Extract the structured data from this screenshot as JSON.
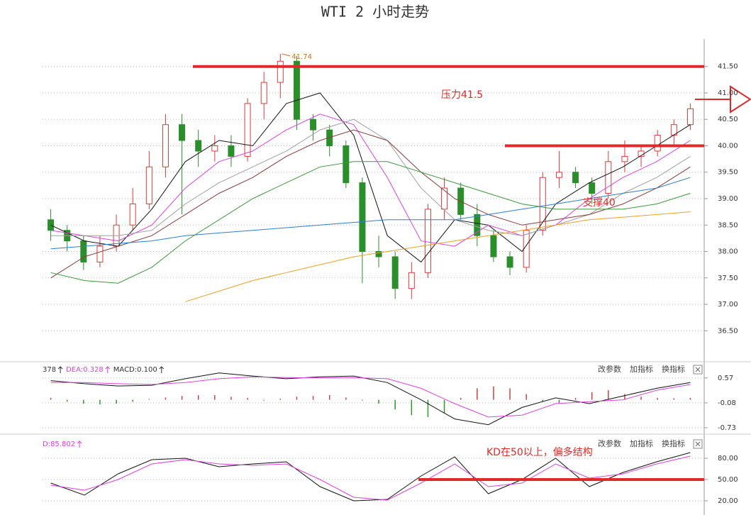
{
  "chart_data": [
    {
      "type": "candlestick",
      "title": "WTI 2 小时走势",
      "ylim": [
        35.98,
        42.02
      ],
      "yticks": [
        {
          "value": 36.5,
          "label": "36.50"
        },
        {
          "value": 37,
          "label": "37.00"
        },
        {
          "value": 37.5,
          "label": "37.50"
        },
        {
          "value": 38,
          "label": "38.00"
        },
        {
          "value": 38.5,
          "label": "38.50"
        },
        {
          "value": 39,
          "label": "39.00"
        },
        {
          "value": 39.5,
          "label": "39.50"
        },
        {
          "value": 40,
          "label": "40.00"
        },
        {
          "value": 40.5,
          "label": "40.50"
        },
        {
          "value": 41,
          "label": "41.00"
        },
        {
          "value": 41.5,
          "label": "41.50"
        }
      ],
      "grid": true,
      "up_color": "#e03a3a",
      "down_color": "#2a8f2a",
      "ohlc": [
        [
          38.6,
          38.8,
          38.2,
          38.4
        ],
        [
          38.4,
          38.5,
          38.0,
          38.2
        ],
        [
          38.2,
          38.3,
          37.65,
          37.8
        ],
        [
          37.8,
          38.3,
          37.7,
          38.1
        ],
        [
          38.1,
          38.7,
          38.0,
          38.5
        ],
        [
          38.5,
          39.2,
          38.4,
          38.9
        ],
        [
          38.9,
          39.9,
          38.8,
          39.6
        ],
        [
          39.6,
          40.6,
          39.4,
          40.4
        ],
        [
          40.4,
          40.6,
          38.7,
          40.1
        ],
        [
          40.1,
          40.3,
          39.6,
          39.9
        ],
        [
          39.9,
          40.2,
          39.7,
          40.0
        ],
        [
          40.0,
          40.2,
          39.6,
          39.8
        ],
        [
          39.8,
          40.9,
          39.7,
          40.8
        ],
        [
          40.8,
          41.4,
          40.5,
          41.2
        ],
        [
          41.2,
          41.74,
          40.9,
          41.6
        ],
        [
          41.6,
          41.7,
          40.3,
          40.5
        ],
        [
          40.5,
          40.6,
          40.1,
          40.3
        ],
        [
          40.3,
          40.4,
          39.8,
          40.0
        ],
        [
          40.0,
          40.1,
          39.2,
          39.3
        ],
        [
          39.3,
          39.4,
          37.4,
          38.0
        ],
        [
          38.0,
          38.3,
          37.7,
          37.9
        ],
        [
          37.9,
          38.0,
          37.1,
          37.3
        ],
        [
          37.3,
          37.8,
          37.1,
          37.6
        ],
        [
          37.6,
          38.9,
          37.5,
          38.8
        ],
        [
          38.8,
          39.4,
          38.6,
          39.2
        ],
        [
          39.2,
          39.3,
          38.6,
          38.7
        ],
        [
          38.7,
          38.9,
          38.1,
          38.3
        ],
        [
          38.3,
          38.4,
          37.8,
          37.9
        ],
        [
          37.9,
          38.0,
          37.55,
          37.7
        ],
        [
          37.7,
          38.5,
          37.6,
          38.4
        ],
        [
          38.4,
          39.5,
          38.3,
          39.4
        ],
        [
          39.4,
          39.9,
          39.2,
          39.5
        ],
        [
          39.5,
          39.6,
          39.2,
          39.3
        ],
        [
          39.3,
          39.4,
          38.9,
          39.1
        ],
        [
          39.1,
          39.9,
          39.0,
          39.7
        ],
        [
          39.7,
          40.1,
          39.5,
          39.8
        ],
        [
          39.8,
          40.0,
          39.6,
          39.9
        ],
        [
          39.9,
          40.3,
          39.8,
          40.2
        ],
        [
          40.2,
          40.5,
          40.0,
          40.4
        ],
        [
          40.4,
          40.8,
          40.3,
          40.7
        ]
      ],
      "series": [
        {
          "color": "#111111",
          "values": [
            38.5,
            38.2,
            38.1,
            38.8,
            39.7,
            40.1,
            40.0,
            40.8,
            41.0,
            40.2,
            38.3,
            37.8,
            38.6,
            38.5,
            38.0,
            38.9,
            39.3,
            39.6,
            40.0,
            40.4
          ]
        },
        {
          "color": "#e040e0",
          "values": [
            38.4,
            38.3,
            38.2,
            38.5,
            39.2,
            39.7,
            39.9,
            40.3,
            40.6,
            40.4,
            39.4,
            38.2,
            38.1,
            38.5,
            38.3,
            38.5,
            39.0,
            39.4,
            39.7,
            40.1
          ]
        },
        {
          "color": "#a0a0a0",
          "values": [
            38.3,
            38.3,
            38.3,
            38.4,
            38.9,
            39.3,
            39.6,
            39.9,
            40.3,
            40.5,
            40.1,
            39.2,
            38.6,
            38.4,
            38.3,
            38.5,
            38.7,
            39.1,
            39.4,
            39.8
          ]
        },
        {
          "color": "#8b3a3a",
          "values": [
            37.5,
            37.9,
            38.1,
            38.3,
            38.7,
            39.1,
            39.4,
            39.8,
            40.1,
            40.3,
            40.1,
            39.5,
            39.0,
            38.7,
            38.5,
            38.6,
            38.7,
            38.9,
            39.2,
            39.6
          ]
        },
        {
          "color": "#3a9a3a",
          "values": [
            37.6,
            37.45,
            37.4,
            37.7,
            38.2,
            38.6,
            39.0,
            39.3,
            39.6,
            39.7,
            39.7,
            39.5,
            39.3,
            39.1,
            38.9,
            38.8,
            38.8,
            38.8,
            38.9,
            39.1
          ]
        },
        {
          "color": "#2b7fd0",
          "values": [
            38.05,
            38.1,
            38.15,
            38.2,
            38.3,
            38.35,
            38.4,
            38.45,
            38.5,
            38.55,
            38.6,
            38.6,
            38.6,
            38.7,
            38.8,
            38.9,
            39.0,
            39.1,
            39.2,
            39.4
          ]
        },
        {
          "color": "#f0a020",
          "values": [
            null,
            null,
            null,
            null,
            37.05,
            37.25,
            37.45,
            37.6,
            37.75,
            37.9,
            38.0,
            38.1,
            38.2,
            38.3,
            38.4,
            38.5,
            38.6,
            38.65,
            38.7,
            38.75
          ]
        }
      ],
      "peak_label": "41.74",
      "hlines": [
        41.5,
        40
      ],
      "hline_color": "#e02a2a",
      "annotations": [
        "压力41.5",
        "支撑40"
      ]
    },
    {
      "type": "macd",
      "ylim": [
        -0.86,
        0.9
      ],
      "yticks": [
        -0.73,
        -0.08,
        0.57
      ],
      "grid": true,
      "indicator_labels": [
        "378",
        "DEA:0.328",
        "MACD:0.100"
      ],
      "buttons": [
        "改参数",
        "加指标",
        "换指标"
      ],
      "up_color": "#d04040",
      "down_color": "#2a9a2a",
      "histogram": [
        0.05,
        -0.05,
        -0.1,
        -0.12,
        -0.1,
        -0.05,
        0.02,
        0.06,
        0.1,
        0.12,
        0.12,
        0.08,
        0.05,
        -0.02,
        0.03,
        0.08,
        0.1,
        0.12,
        0.06,
        -0.02,
        -0.1,
        -0.25,
        -0.4,
        -0.45,
        -0.35,
        0.05,
        0.3,
        0.35,
        0.3,
        0.15,
        -0.05,
        -0.1,
        0.05,
        0.2,
        0.25,
        0.15,
        0.08,
        0.05,
        0.04,
        0.05
      ],
      "series": [
        {
          "color": "#111111",
          "values": [
            0.5,
            0.42,
            0.36,
            0.38,
            0.55,
            0.7,
            0.62,
            0.55,
            0.6,
            0.62,
            0.45,
            0.0,
            -0.5,
            -0.65,
            -0.2,
            0.05,
            -0.1,
            0.1,
            0.3,
            0.45
          ]
        },
        {
          "color": "#e040e0",
          "values": [
            0.45,
            0.45,
            0.42,
            0.4,
            0.45,
            0.55,
            0.6,
            0.58,
            0.57,
            0.58,
            0.55,
            0.3,
            -0.1,
            -0.45,
            -0.4,
            -0.1,
            -0.05,
            0.0,
            0.25,
            0.4
          ]
        }
      ]
    },
    {
      "type": "line",
      "ylim": [
        6,
        106
      ],
      "yticks": [
        {
          "value": 20,
          "label": "20.00"
        },
        {
          "value": 50,
          "label": "50.00"
        },
        {
          "value": 80,
          "label": "80.00"
        }
      ],
      "grid": true,
      "indicator_labels": [
        "D:85.802"
      ],
      "buttons": [
        "改参数",
        "加指标",
        "换指标"
      ],
      "series": [
        {
          "color": "#111111",
          "values": [
            45,
            28,
            58,
            78,
            80,
            68,
            72,
            75,
            40,
            20,
            22,
            55,
            82,
            30,
            50,
            80,
            40,
            60,
            75,
            88
          ]
        },
        {
          "color": "#e040e0",
          "values": [
            42,
            35,
            50,
            72,
            78,
            72,
            70,
            72,
            50,
            25,
            21,
            45,
            72,
            40,
            45,
            72,
            52,
            58,
            72,
            83
          ]
        }
      ],
      "hlines": [
        50
      ],
      "hline_color": "#e02a2a",
      "annotations": [
        "KD在50以上，偏多结构"
      ]
    }
  ]
}
